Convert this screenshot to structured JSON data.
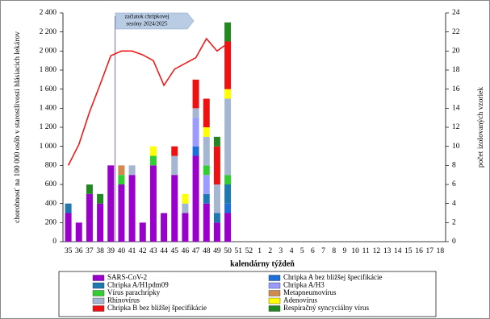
{
  "chart_data": {
    "type": "bar",
    "y_label": "chorobnosť na 100 000 osôb v starostlivosti hlásiacich lekárov",
    "y2_label": "počet izolovaných vzoriek",
    "x_label": "kalendárny týždeň",
    "annotation": [
      "začiatok chrípkovej",
      "sezóny 2024/2025"
    ],
    "categories": [
      "35",
      "36",
      "37",
      "38",
      "39",
      "40",
      "41",
      "42",
      "43",
      "44",
      "45",
      "46",
      "47",
      "48",
      "49",
      "50",
      "51",
      "52",
      "1",
      "2",
      "3",
      "4",
      "5",
      "6",
      "7",
      "8",
      "9",
      "10",
      "11",
      "12",
      "13",
      "14",
      "15",
      "16",
      "17",
      "18"
    ],
    "ylim": [
      0,
      2400
    ],
    "yticks": [
      0,
      200,
      400,
      600,
      800,
      {
        "value": 1000,
        "label": "1 000"
      },
      {
        "value": 1200,
        "label": "1 200"
      },
      {
        "value": 1400,
        "label": "1 400"
      },
      {
        "value": 1600,
        "label": "1 600"
      },
      {
        "value": 1800,
        "label": "1 800"
      },
      {
        "value": 2000,
        "label": "2 000"
      },
      {
        "value": 2200,
        "label": "2 200"
      },
      {
        "value": 2400,
        "label": "2 400"
      }
    ],
    "y2lim": [
      0,
      24
    ],
    "y2ticks": [
      0,
      2,
      4,
      6,
      8,
      10,
      12,
      14,
      16,
      18,
      20,
      22,
      24
    ],
    "line": {
      "color": "#ee1c1c",
      "values": [
        800,
        1020,
        1360,
        1650,
        1950,
        2000,
        2000,
        1960,
        1900,
        1640,
        1810,
        1870,
        1930,
        2130,
        2000,
        2080,
        null,
        null,
        null,
        null,
        null,
        null,
        null,
        null,
        null,
        null,
        null,
        null,
        null,
        null,
        null,
        null,
        null,
        null,
        null,
        null
      ]
    },
    "series": [
      {
        "name": "SARS-CoV-2",
        "color": "#9900cc",
        "axis": "y2",
        "values": [
          3,
          2,
          5,
          4,
          8,
          6,
          7,
          2,
          8,
          3,
          7,
          3,
          9,
          4,
          2,
          3,
          null,
          null,
          null,
          null,
          null,
          null,
          null,
          null,
          null,
          null,
          null,
          null,
          null,
          null,
          null,
          null,
          null,
          null,
          null,
          null
        ]
      },
      {
        "name": "Chripka A bez bližšej špecifikácie",
        "color": "#1f6fd8",
        "axis": "y2",
        "values": [
          0,
          0,
          0,
          0,
          0,
          0,
          0,
          0,
          0,
          0,
          0,
          0,
          1,
          0,
          0,
          1,
          null,
          null,
          null,
          null,
          null,
          null,
          null,
          null,
          null,
          null,
          null,
          null,
          null,
          null,
          null,
          null,
          null,
          null,
          null,
          null
        ]
      },
      {
        "name": "Chripka A/H1pdm09",
        "color": "#1f78b0",
        "axis": "y2",
        "values": [
          1,
          0,
          0,
          0,
          0,
          0,
          0,
          0,
          0,
          0,
          0,
          0,
          0,
          1,
          1,
          2,
          null,
          null,
          null,
          null,
          null,
          null,
          null,
          null,
          null,
          null,
          null,
          null,
          null,
          null,
          null,
          null,
          null,
          null,
          null,
          null
        ]
      },
      {
        "name": "Chripka A/H3",
        "color": "#9a9aff",
        "axis": "y2",
        "values": [
          0,
          0,
          0,
          0,
          0,
          0,
          0,
          0,
          0,
          0,
          0,
          0,
          3,
          2,
          0,
          0,
          null,
          null,
          null,
          null,
          null,
          null,
          null,
          null,
          null,
          null,
          null,
          null,
          null,
          null,
          null,
          null,
          null,
          null,
          null,
          null
        ]
      },
      {
        "name": "Vírus parachrípky",
        "color": "#33cc33",
        "axis": "y2",
        "values": [
          0,
          0,
          0,
          0,
          0,
          1,
          0,
          0,
          1,
          0,
          0,
          0,
          0,
          1,
          0,
          1,
          null,
          null,
          null,
          null,
          null,
          null,
          null,
          null,
          null,
          null,
          null,
          null,
          null,
          null,
          null,
          null,
          null,
          null,
          null,
          null
        ]
      },
      {
        "name": "Metapneumovírus",
        "color": "#d08a50",
        "axis": "y2",
        "values": [
          0,
          0,
          0,
          0,
          0,
          1,
          0,
          0,
          0,
          0,
          0,
          0,
          0,
          0,
          0,
          0,
          null,
          null,
          null,
          null,
          null,
          null,
          null,
          null,
          null,
          null,
          null,
          null,
          null,
          null,
          null,
          null,
          null,
          null,
          null,
          null
        ]
      },
      {
        "name": "Rhinovírus",
        "color": "#a4b6d2",
        "axis": "y2",
        "values": [
          0,
          0,
          0,
          0,
          0,
          0,
          1,
          0,
          0,
          0,
          2,
          1,
          1,
          3,
          3,
          8,
          null,
          null,
          null,
          null,
          null,
          null,
          null,
          null,
          null,
          null,
          null,
          null,
          null,
          null,
          null,
          null,
          null,
          null,
          null,
          null
        ]
      },
      {
        "name": "Adenovírus",
        "color": "#ffff00",
        "axis": "y2",
        "values": [
          0,
          0,
          0,
          0,
          0,
          0,
          0,
          0,
          1,
          0,
          0,
          1,
          0,
          1,
          0,
          1,
          null,
          null,
          null,
          null,
          null,
          null,
          null,
          null,
          null,
          null,
          null,
          null,
          null,
          null,
          null,
          null,
          null,
          null,
          null,
          null
        ]
      },
      {
        "name": "Chripka B bez bližšej špecifikácie",
        "color": "#ee1111",
        "axis": "y2",
        "values": [
          0,
          0,
          0,
          0,
          0,
          0,
          0,
          0,
          0,
          0,
          1,
          0,
          3,
          3,
          4,
          5,
          null,
          null,
          null,
          null,
          null,
          null,
          null,
          null,
          null,
          null,
          null,
          null,
          null,
          null,
          null,
          null,
          null,
          null,
          null,
          null
        ]
      },
      {
        "name": "Respiračný syncyciálny vírus",
        "color": "#228822",
        "axis": "y2",
        "values": [
          0,
          0,
          1,
          1,
          0,
          0,
          0,
          0,
          0,
          0,
          0,
          0,
          0,
          0,
          1,
          2,
          null,
          null,
          null,
          null,
          null,
          null,
          null,
          null,
          null,
          null,
          null,
          null,
          null,
          null,
          null,
          null,
          null,
          null,
          null,
          null
        ]
      }
    ]
  }
}
